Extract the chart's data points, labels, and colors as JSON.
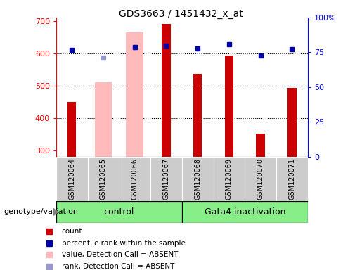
{
  "title": "GDS3663 / 1451432_x_at",
  "samples": [
    "GSM120064",
    "GSM120065",
    "GSM120066",
    "GSM120067",
    "GSM120068",
    "GSM120069",
    "GSM120070",
    "GSM120071"
  ],
  "count_values": [
    450,
    null,
    null,
    690,
    535,
    592,
    352,
    493
  ],
  "absent_value_bars": [
    null,
    510,
    665,
    null,
    null,
    null,
    null,
    null
  ],
  "rank_absent": [
    null,
    585,
    618,
    null,
    null,
    null,
    null,
    null
  ],
  "blue_squares": [
    610,
    null,
    618,
    622,
    615,
    628,
    592,
    612
  ],
  "ylim_left": [
    280,
    710
  ],
  "ylim_right": [
    0,
    100
  ],
  "right_ticks": [
    0,
    25,
    50,
    75,
    100
  ],
  "right_tick_labels": [
    "0",
    "25",
    "50",
    "75",
    "100%"
  ],
  "left_ticks": [
    300,
    400,
    500,
    600,
    700
  ],
  "dotted_lines": [
    400,
    500,
    600
  ],
  "bar_color_red": "#cc0000",
  "bar_color_pink": "#ffbbbb",
  "dot_color_blue": "#0000aa",
  "dot_color_lightblue": "#9999cc",
  "genotype_label": "genotype/variation",
  "group_color": "#88ee88",
  "gray_box_color": "#cccccc"
}
